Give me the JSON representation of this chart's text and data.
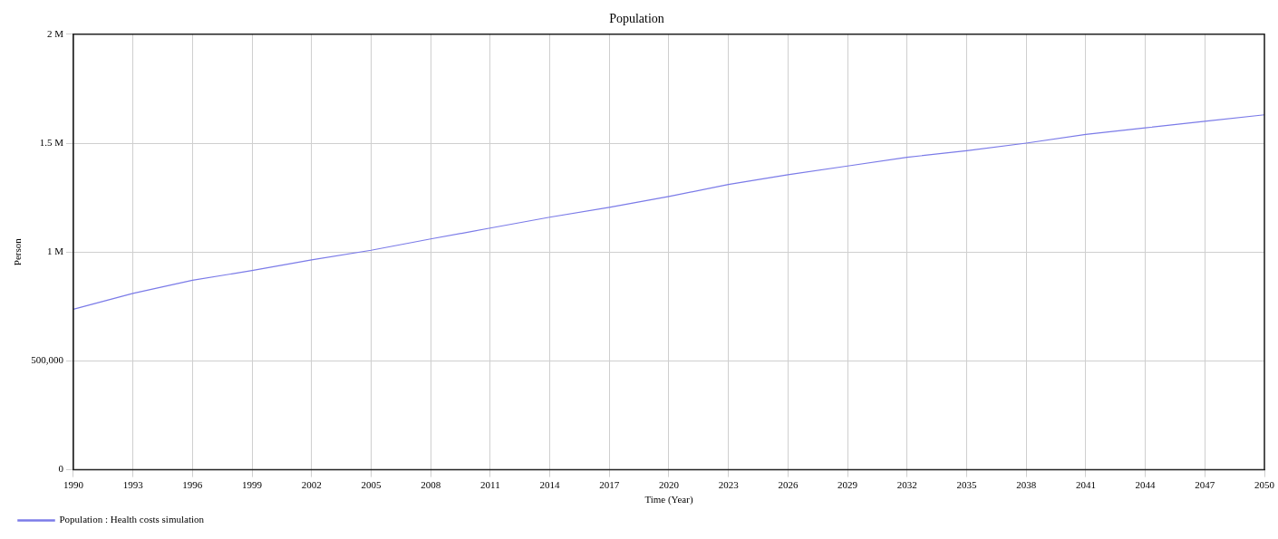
{
  "chart_data": {
    "type": "line",
    "title": "Population",
    "xlabel": "Time (Year)",
    "ylabel": "Person",
    "x": [
      1990,
      1993,
      1996,
      1999,
      2002,
      2005,
      2008,
      2011,
      2014,
      2017,
      2020,
      2023,
      2026,
      2029,
      2032,
      2035,
      2038,
      2041,
      2044,
      2047,
      2050
    ],
    "series": [
      {
        "name": "Population : Health costs simulation",
        "color": "#7b7be8",
        "values": [
          737000,
          810000,
          870000,
          915000,
          964000,
          1008000,
          1060000,
          1110000,
          1160000,
          1205000,
          1255000,
          1310000,
          1355000,
          1395000,
          1435000,
          1465000,
          1500000,
          1540000,
          1570000,
          1600000,
          1630000
        ]
      }
    ],
    "xlim": [
      1990,
      2050
    ],
    "xticks": [
      1990,
      1993,
      1996,
      1999,
      2002,
      2005,
      2008,
      2011,
      2014,
      2017,
      2020,
      2023,
      2026,
      2029,
      2032,
      2035,
      2038,
      2041,
      2044,
      2047,
      2050
    ],
    "ylim": [
      0,
      2000000
    ],
    "yticks": [
      {
        "value": 0,
        "label": "0"
      },
      {
        "value": 500000,
        "label": "500,000"
      },
      {
        "value": 1000000,
        "label": "1 M"
      },
      {
        "value": 1500000,
        "label": "1.5 M"
      },
      {
        "value": 2000000,
        "label": "2 M"
      }
    ],
    "grid": true,
    "legend": "bottom",
    "marker": "none",
    "line_style": "solid"
  }
}
